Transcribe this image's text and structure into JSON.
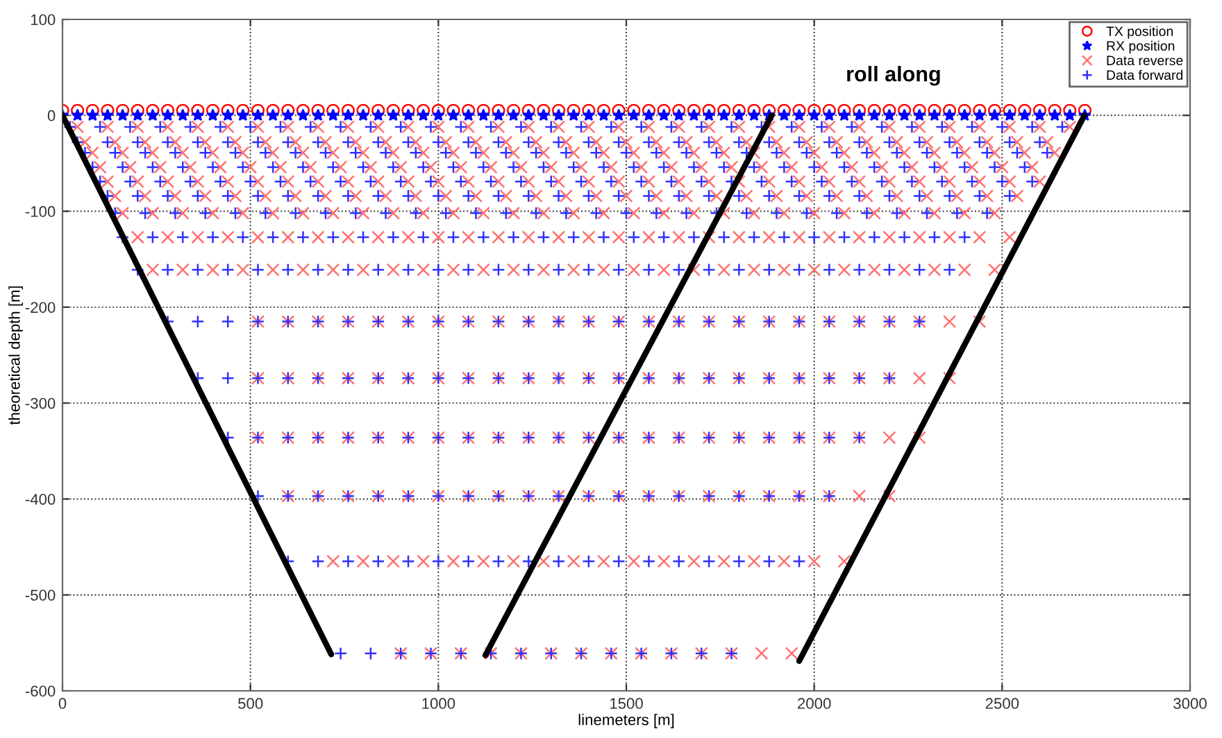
{
  "chart_data": {
    "type": "scatter",
    "xlabel": "linemeters [m]",
    "ylabel": "theoretical depth [m]",
    "annotations": [
      "roll along"
    ],
    "xlim": [
      0,
      3000
    ],
    "ylim": [
      -600,
      100
    ],
    "xticks": [
      0,
      500,
      1000,
      1500,
      2000,
      2500,
      3000
    ],
    "yticks": [
      -600,
      -500,
      -400,
      -300,
      -200,
      -100,
      0,
      100
    ],
    "grid": true,
    "legend": "top right",
    "series": [
      {
        "name": "TX position",
        "color": "#ff0000",
        "marker": "circle",
        "x": [
          0,
          40,
          80,
          120,
          160,
          200,
          240,
          280,
          320,
          360,
          400,
          440,
          480,
          520,
          560,
          600,
          640,
          680,
          720,
          760,
          800,
          840,
          880,
          920,
          960,
          1000,
          1040,
          1080,
          1120,
          1160,
          1200,
          1240,
          1280,
          1320,
          1360,
          1400,
          1440,
          1480,
          1520,
          1560,
          1600,
          1640,
          1680,
          1720,
          1760,
          1800,
          1840,
          1880,
          1920,
          1960,
          2000,
          2040,
          2080,
          2120,
          2160,
          2200,
          2240,
          2280,
          2320,
          2360,
          2400,
          2440,
          2480,
          2520,
          2560,
          2600,
          2640,
          2680,
          2720
        ],
        "values": [
          5,
          5,
          5,
          5,
          5,
          5,
          5,
          5,
          5,
          5,
          5,
          5,
          5,
          5,
          5,
          5,
          5,
          5,
          5,
          5,
          5,
          5,
          5,
          5,
          5,
          5,
          5,
          5,
          5,
          5,
          5,
          5,
          5,
          5,
          5,
          5,
          5,
          5,
          5,
          5,
          5,
          5,
          5,
          5,
          5,
          5,
          5,
          5,
          5,
          5,
          5,
          5,
          5,
          5,
          5,
          5,
          5,
          5,
          5,
          5,
          5,
          5,
          5,
          5,
          5,
          5,
          5,
          5,
          5
        ]
      },
      {
        "name": "RX position",
        "color": "#0000ff",
        "marker": "star",
        "x": [
          0,
          40,
          80,
          120,
          160,
          200,
          240,
          280,
          320,
          360,
          400,
          440,
          480,
          520,
          560,
          600,
          640,
          680,
          720,
          760,
          800,
          840,
          880,
          920,
          960,
          1000,
          1040,
          1080,
          1120,
          1160,
          1200,
          1240,
          1280,
          1320,
          1360,
          1400,
          1440,
          1480,
          1520,
          1560,
          1600,
          1640,
          1680,
          1720,
          1760,
          1800,
          1840,
          1880,
          1920,
          1960,
          2000,
          2040,
          2080,
          2120,
          2160,
          2200,
          2240,
          2280,
          2320,
          2360,
          2400,
          2440,
          2480,
          2520,
          2560,
          2600,
          2640,
          2680,
          2720
        ],
        "values": [
          0,
          0,
          0,
          0,
          0,
          0,
          0,
          0,
          0,
          0,
          0,
          0,
          0,
          0,
          0,
          0,
          0,
          0,
          0,
          0,
          0,
          0,
          0,
          0,
          0,
          0,
          0,
          0,
          0,
          0,
          0,
          0,
          0,
          0,
          0,
          0,
          0,
          0,
          0,
          0,
          0,
          0,
          0,
          0,
          0,
          0,
          0,
          0,
          0,
          0,
          0,
          0,
          0,
          0,
          0,
          0,
          0,
          0,
          0,
          0,
          0,
          0,
          0,
          0,
          0,
          0,
          0,
          0,
          0
        ]
      },
      {
        "name": "Data reverse",
        "color": "#ff7070",
        "marker": "cross",
        "x": [
          40,
          120,
          200,
          280,
          360,
          440,
          520,
          600,
          680,
          760,
          840,
          920,
          1000,
          1080,
          1160,
          1240,
          1320,
          1400,
          1480,
          1560,
          1640,
          1720,
          1800,
          1880,
          1960,
          2040,
          2120,
          2200,
          2280,
          2360,
          2440,
          2520,
          2600,
          2680,
          60,
          140,
          220,
          300,
          380,
          460,
          540,
          620,
          700,
          780,
          860,
          940,
          1020,
          1100,
          1180,
          1260,
          1340,
          1420,
          1500,
          1580,
          1660,
          1740,
          1820,
          1900,
          1980,
          2060,
          2140,
          2220,
          2300,
          2380,
          2460,
          2540,
          2620,
          80,
          160,
          240,
          320,
          400,
          480,
          560,
          640,
          720,
          800,
          880,
          960,
          1040,
          1120,
          1200,
          1280,
          1360,
          1440,
          1520,
          1600,
          1680,
          1760,
          1840,
          1920,
          2000,
          2080,
          2160,
          2240,
          2320,
          2400,
          2480,
          2560,
          2640,
          100,
          180,
          260,
          340,
          420,
          500,
          580,
          660,
          740,
          820,
          900,
          980,
          1060,
          1140,
          1220,
          1300,
          1380,
          1460,
          1540,
          1620,
          1700,
          1780,
          1860,
          1940,
          2020,
          2100,
          2180,
          2260,
          2340,
          2420,
          2500,
          2580,
          120,
          200,
          280,
          360,
          440,
          520,
          600,
          680,
          760,
          840,
          920,
          1000,
          1080,
          1160,
          1240,
          1320,
          1400,
          1480,
          1560,
          1640,
          1720,
          1800,
          1880,
          1960,
          2040,
          2120,
          2200,
          2280,
          2360,
          2440,
          2520,
          2600,
          140,
          220,
          300,
          380,
          460,
          540,
          620,
          700,
          780,
          860,
          940,
          1020,
          1100,
          1180,
          1260,
          1340,
          1420,
          1500,
          1580,
          1660,
          1740,
          1820,
          1900,
          1980,
          2060,
          2140,
          2220,
          2300,
          2380,
          2460,
          2540,
          160,
          240,
          320,
          400,
          480,
          560,
          640,
          720,
          800,
          880,
          960,
          1040,
          1120,
          1200,
          1280,
          1360,
          1440,
          1520,
          1600,
          1680,
          1760,
          1840,
          1920,
          2000,
          2080,
          2160,
          2240,
          2320,
          2400,
          2480,
          200,
          280,
          360,
          440,
          520,
          600,
          680,
          760,
          840,
          920,
          1000,
          1080,
          1160,
          1240,
          1320,
          1400,
          1480,
          1560,
          1640,
          1720,
          1800,
          1880,
          1960,
          2040,
          2120,
          2200,
          2280,
          2360,
          2440,
          2520,
          240,
          320,
          400,
          480,
          560,
          640,
          720,
          800,
          880,
          960,
          1040,
          1120,
          1200,
          1280,
          1360,
          1440,
          1520,
          1600,
          1680,
          1760,
          1840,
          1920,
          2000,
          2080,
          2160,
          2240,
          2320,
          2400,
          2480,
          520,
          600,
          680,
          760,
          840,
          920,
          1000,
          1080,
          1160,
          1240,
          1320,
          1400,
          1480,
          1560,
          1640,
          1720,
          1800,
          1880,
          1960,
          2040,
          2120,
          2200,
          2280,
          2360,
          2440,
          520,
          600,
          680,
          760,
          840,
          920,
          1000,
          1080,
          1160,
          1240,
          1320,
          1400,
          1480,
          1560,
          1640,
          1720,
          1800,
          1880,
          1960,
          2040,
          2120,
          2200,
          2280,
          2360,
          520,
          600,
          680,
          760,
          840,
          920,
          1000,
          1080,
          1160,
          1240,
          1320,
          1400,
          1480,
          1560,
          1640,
          1720,
          1800,
          1880,
          1960,
          2040,
          2120,
          2200,
          2280,
          600,
          680,
          760,
          840,
          920,
          1000,
          1080,
          1160,
          1240,
          1320,
          1400,
          1480,
          1560,
          1640,
          1720,
          1800,
          1880,
          1960,
          2040,
          2120,
          2200,
          720,
          800,
          880,
          960,
          1040,
          1120,
          1200,
          1280,
          1360,
          1440,
          1520,
          1600,
          1680,
          1760,
          1840,
          1920,
          2000,
          2080,
          900,
          980,
          1060,
          1140,
          1220,
          1300,
          1380,
          1460,
          1540,
          1620,
          1700,
          1780,
          1860,
          1940
        ],
        "values": [
          -12,
          -12,
          -12,
          -12,
          -12,
          -12,
          -12,
          -12,
          -12,
          -12,
          -12,
          -12,
          -12,
          -12,
          -12,
          -12,
          -12,
          -12,
          -12,
          -12,
          -12,
          -12,
          -12,
          -12,
          -12,
          -12,
          -12,
          -12,
          -12,
          -12,
          -12,
          -12,
          -12,
          -12,
          -28,
          -28,
          -28,
          -28,
          -28,
          -28,
          -28,
          -28,
          -28,
          -28,
          -28,
          -28,
          -28,
          -28,
          -28,
          -28,
          -28,
          -28,
          -28,
          -28,
          -28,
          -28,
          -28,
          -28,
          -28,
          -28,
          -28,
          -28,
          -28,
          -28,
          -28,
          -28,
          -28,
          -39,
          -39,
          -39,
          -39,
          -39,
          -39,
          -39,
          -39,
          -39,
          -39,
          -39,
          -39,
          -39,
          -39,
          -39,
          -39,
          -39,
          -39,
          -39,
          -39,
          -39,
          -39,
          -39,
          -39,
          -39,
          -39,
          -39,
          -39,
          -39,
          -39,
          -39,
          -39,
          -39,
          -54,
          -54,
          -54,
          -54,
          -54,
          -54,
          -54,
          -54,
          -54,
          -54,
          -54,
          -54,
          -54,
          -54,
          -54,
          -54,
          -54,
          -54,
          -54,
          -54,
          -54,
          -54,
          -54,
          -54,
          -54,
          -54,
          -54,
          -54,
          -54,
          -54,
          -54,
          -54,
          -69,
          -69,
          -69,
          -69,
          -69,
          -69,
          -69,
          -69,
          -69,
          -69,
          -69,
          -69,
          -69,
          -69,
          -69,
          -69,
          -69,
          -69,
          -69,
          -69,
          -69,
          -69,
          -69,
          -69,
          -69,
          -69,
          -69,
          -69,
          -69,
          -69,
          -69,
          -69,
          -84,
          -84,
          -84,
          -84,
          -84,
          -84,
          -84,
          -84,
          -84,
          -84,
          -84,
          -84,
          -84,
          -84,
          -84,
          -84,
          -84,
          -84,
          -84,
          -84,
          -84,
          -84,
          -84,
          -84,
          -84,
          -84,
          -84,
          -84,
          -84,
          -84,
          -84,
          -102,
          -102,
          -102,
          -102,
          -102,
          -102,
          -102,
          -102,
          -102,
          -102,
          -102,
          -102,
          -102,
          -102,
          -102,
          -102,
          -102,
          -102,
          -102,
          -102,
          -102,
          -102,
          -102,
          -102,
          -102,
          -102,
          -102,
          -102,
          -102,
          -102,
          -127,
          -127,
          -127,
          -127,
          -127,
          -127,
          -127,
          -127,
          -127,
          -127,
          -127,
          -127,
          -127,
          -127,
          -127,
          -127,
          -127,
          -127,
          -127,
          -127,
          -127,
          -127,
          -127,
          -127,
          -127,
          -127,
          -127,
          -127,
          -127,
          -127,
          -161,
          -161,
          -161,
          -161,
          -161,
          -161,
          -161,
          -161,
          -161,
          -161,
          -161,
          -161,
          -161,
          -161,
          -161,
          -161,
          -161,
          -161,
          -161,
          -161,
          -161,
          -161,
          -161,
          -161,
          -161,
          -161,
          -161,
          -161,
          -161,
          -215,
          -215,
          -215,
          -215,
          -215,
          -215,
          -215,
          -215,
          -215,
          -215,
          -215,
          -215,
          -215,
          -215,
          -215,
          -215,
          -215,
          -215,
          -215,
          -215,
          -215,
          -215,
          -215,
          -215,
          -215,
          -274,
          -274,
          -274,
          -274,
          -274,
          -274,
          -274,
          -274,
          -274,
          -274,
          -274,
          -274,
          -274,
          -274,
          -274,
          -274,
          -274,
          -274,
          -274,
          -274,
          -274,
          -274,
          -274,
          -274,
          -336,
          -336,
          -336,
          -336,
          -336,
          -336,
          -336,
          -336,
          -336,
          -336,
          -336,
          -336,
          -336,
          -336,
          -336,
          -336,
          -336,
          -336,
          -336,
          -336,
          -336,
          -336,
          -336,
          -397,
          -397,
          -397,
          -397,
          -397,
          -397,
          -397,
          -397,
          -397,
          -397,
          -397,
          -397,
          -397,
          -397,
          -397,
          -397,
          -397,
          -397,
          -397,
          -397,
          -397,
          -465,
          -465,
          -465,
          -465,
          -465,
          -465,
          -465,
          -465,
          -465,
          -465,
          -465,
          -465,
          -465,
          -465,
          -465,
          -465,
          -465,
          -465,
          -561,
          -561,
          -561,
          -561,
          -561,
          -561,
          -561,
          -561,
          -561,
          -561,
          -561,
          -561,
          -561,
          -561
        ]
      },
      {
        "name": "Data forward",
        "color": "#3030ff",
        "marker": "plus",
        "x": [
          20,
          100,
          180,
          260,
          340,
          420,
          500,
          580,
          660,
          740,
          820,
          900,
          980,
          1060,
          1140,
          1220,
          1300,
          1380,
          1460,
          1540,
          1620,
          1700,
          1780,
          1860,
          1940,
          2020,
          2100,
          2180,
          2260,
          2340,
          2420,
          2500,
          2580,
          2660,
          40,
          120,
          200,
          280,
          360,
          440,
          520,
          600,
          680,
          760,
          840,
          920,
          1000,
          1080,
          1160,
          1240,
          1320,
          1400,
          1480,
          1560,
          1640,
          1720,
          1800,
          1880,
          1960,
          2040,
          2120,
          2200,
          2280,
          2360,
          2440,
          2520,
          2600,
          60,
          140,
          220,
          300,
          380,
          460,
          540,
          620,
          700,
          780,
          860,
          940,
          1020,
          1100,
          1180,
          1260,
          1340,
          1420,
          1500,
          1580,
          1660,
          1740,
          1820,
          1900,
          1980,
          2060,
          2140,
          2220,
          2300,
          2380,
          2460,
          2540,
          2620,
          80,
          160,
          240,
          320,
          400,
          480,
          560,
          640,
          720,
          800,
          880,
          960,
          1040,
          1120,
          1200,
          1280,
          1360,
          1440,
          1520,
          1600,
          1680,
          1760,
          1840,
          1920,
          2000,
          2080,
          2160,
          2240,
          2320,
          2400,
          2480,
          2560,
          100,
          180,
          260,
          340,
          420,
          500,
          580,
          660,
          740,
          820,
          900,
          980,
          1060,
          1140,
          1220,
          1300,
          1380,
          1460,
          1540,
          1620,
          1700,
          1780,
          1860,
          1940,
          2020,
          2100,
          2180,
          2260,
          2340,
          2420,
          2500,
          2580,
          120,
          200,
          280,
          360,
          440,
          520,
          600,
          680,
          760,
          840,
          920,
          1000,
          1080,
          1160,
          1240,
          1320,
          1400,
          1480,
          1560,
          1640,
          1720,
          1800,
          1880,
          1960,
          2040,
          2120,
          2200,
          2280,
          2360,
          2440,
          2520,
          140,
          220,
          300,
          380,
          460,
          540,
          620,
          700,
          780,
          860,
          940,
          1020,
          1100,
          1180,
          1260,
          1340,
          1420,
          1500,
          1580,
          1660,
          1740,
          1820,
          1900,
          1980,
          2060,
          2140,
          2220,
          2300,
          2380,
          2460,
          160,
          240,
          320,
          400,
          480,
          560,
          640,
          720,
          800,
          880,
          960,
          1040,
          1120,
          1200,
          1280,
          1360,
          1440,
          1520,
          1600,
          1680,
          1760,
          1840,
          1920,
          2000,
          2080,
          2160,
          2240,
          2320,
          2400,
          200,
          280,
          360,
          440,
          520,
          600,
          680,
          760,
          840,
          920,
          1000,
          1080,
          1160,
          1240,
          1320,
          1400,
          1480,
          1560,
          1640,
          1720,
          1800,
          1880,
          1960,
          2040,
          2120,
          2200,
          2280,
          2360,
          280,
          360,
          440,
          520,
          600,
          680,
          760,
          840,
          920,
          1000,
          1080,
          1160,
          1240,
          1320,
          1400,
          1480,
          1560,
          1640,
          1720,
          1800,
          1880,
          1960,
          2040,
          2120,
          2200,
          2280,
          360,
          440,
          520,
          600,
          680,
          760,
          840,
          920,
          1000,
          1080,
          1160,
          1240,
          1320,
          1400,
          1480,
          1560,
          1640,
          1720,
          1800,
          1880,
          1960,
          2040,
          2120,
          2200,
          440,
          520,
          600,
          680,
          760,
          840,
          920,
          1000,
          1080,
          1160,
          1240,
          1320,
          1400,
          1480,
          1560,
          1640,
          1720,
          1800,
          1880,
          1960,
          2040,
          2120,
          520,
          600,
          680,
          760,
          840,
          920,
          1000,
          1080,
          1160,
          1240,
          1320,
          1400,
          1480,
          1560,
          1640,
          1720,
          1800,
          1880,
          1960,
          2040,
          600,
          680,
          760,
          840,
          920,
          1000,
          1080,
          1160,
          1240,
          1320,
          1400,
          1480,
          1560,
          1640,
          1720,
          1800,
          1880,
          1960,
          740,
          820,
          900,
          980,
          1060,
          1140,
          1220,
          1300,
          1380,
          1460,
          1540,
          1620,
          1700,
          1780
        ],
        "values": [
          -12,
          -12,
          -12,
          -12,
          -12,
          -12,
          -12,
          -12,
          -12,
          -12,
          -12,
          -12,
          -12,
          -12,
          -12,
          -12,
          -12,
          -12,
          -12,
          -12,
          -12,
          -12,
          -12,
          -12,
          -12,
          -12,
          -12,
          -12,
          -12,
          -12,
          -12,
          -12,
          -12,
          -12,
          -28,
          -28,
          -28,
          -28,
          -28,
          -28,
          -28,
          -28,
          -28,
          -28,
          -28,
          -28,
          -28,
          -28,
          -28,
          -28,
          -28,
          -28,
          -28,
          -28,
          -28,
          -28,
          -28,
          -28,
          -28,
          -28,
          -28,
          -28,
          -28,
          -28,
          -28,
          -28,
          -28,
          -39,
          -39,
          -39,
          -39,
          -39,
          -39,
          -39,
          -39,
          -39,
          -39,
          -39,
          -39,
          -39,
          -39,
          -39,
          -39,
          -39,
          -39,
          -39,
          -39,
          -39,
          -39,
          -39,
          -39,
          -39,
          -39,
          -39,
          -39,
          -39,
          -39,
          -39,
          -39,
          -39,
          -54,
          -54,
          -54,
          -54,
          -54,
          -54,
          -54,
          -54,
          -54,
          -54,
          -54,
          -54,
          -54,
          -54,
          -54,
          -54,
          -54,
          -54,
          -54,
          -54,
          -54,
          -54,
          -54,
          -54,
          -54,
          -54,
          -54,
          -54,
          -54,
          -54,
          -54,
          -54,
          -69,
          -69,
          -69,
          -69,
          -69,
          -69,
          -69,
          -69,
          -69,
          -69,
          -69,
          -69,
          -69,
          -69,
          -69,
          -69,
          -69,
          -69,
          -69,
          -69,
          -69,
          -69,
          -69,
          -69,
          -69,
          -69,
          -69,
          -69,
          -69,
          -69,
          -69,
          -69,
          -84,
          -84,
          -84,
          -84,
          -84,
          -84,
          -84,
          -84,
          -84,
          -84,
          -84,
          -84,
          -84,
          -84,
          -84,
          -84,
          -84,
          -84,
          -84,
          -84,
          -84,
          -84,
          -84,
          -84,
          -84,
          -84,
          -84,
          -84,
          -84,
          -84,
          -84,
          -102,
          -102,
          -102,
          -102,
          -102,
          -102,
          -102,
          -102,
          -102,
          -102,
          -102,
          -102,
          -102,
          -102,
          -102,
          -102,
          -102,
          -102,
          -102,
          -102,
          -102,
          -102,
          -102,
          -102,
          -102,
          -102,
          -102,
          -102,
          -102,
          -102,
          -127,
          -127,
          -127,
          -127,
          -127,
          -127,
          -127,
          -127,
          -127,
          -127,
          -127,
          -127,
          -127,
          -127,
          -127,
          -127,
          -127,
          -127,
          -127,
          -127,
          -127,
          -127,
          -127,
          -127,
          -127,
          -127,
          -127,
          -127,
          -127,
          -161,
          -161,
          -161,
          -161,
          -161,
          -161,
          -161,
          -161,
          -161,
          -161,
          -161,
          -161,
          -161,
          -161,
          -161,
          -161,
          -161,
          -161,
          -161,
          -161,
          -161,
          -161,
          -161,
          -161,
          -161,
          -161,
          -161,
          -161,
          -215,
          -215,
          -215,
          -215,
          -215,
          -215,
          -215,
          -215,
          -215,
          -215,
          -215,
          -215,
          -215,
          -215,
          -215,
          -215,
          -215,
          -215,
          -215,
          -215,
          -215,
          -215,
          -215,
          -215,
          -215,
          -215,
          -274,
          -274,
          -274,
          -274,
          -274,
          -274,
          -274,
          -274,
          -274,
          -274,
          -274,
          -274,
          -274,
          -274,
          -274,
          -274,
          -274,
          -274,
          -274,
          -274,
          -274,
          -274,
          -274,
          -274,
          -336,
          -336,
          -336,
          -336,
          -336,
          -336,
          -336,
          -336,
          -336,
          -336,
          -336,
          -336,
          -336,
          -336,
          -336,
          -336,
          -336,
          -336,
          -336,
          -336,
          -336,
          -336,
          -397,
          -397,
          -397,
          -397,
          -397,
          -397,
          -397,
          -397,
          -397,
          -397,
          -397,
          -397,
          -397,
          -397,
          -397,
          -397,
          -397,
          -397,
          -397,
          -397,
          -465,
          -465,
          -465,
          -465,
          -465,
          -465,
          -465,
          -465,
          -465,
          -465,
          -465,
          -465,
          -465,
          -465,
          -465,
          -465,
          -465,
          -465,
          -561,
          -561,
          -561,
          -561,
          -561,
          -561,
          -561,
          -561,
          -561,
          -561,
          -561,
          -561,
          -561,
          -561
        ]
      },
      {
        "type": "line",
        "color": "#000000",
        "x": [
          0,
          715
        ],
        "values": [
          0,
          -562
        ]
      },
      {
        "type": "line",
        "color": "#000000",
        "x": [
          1887,
          1125
        ],
        "values": [
          0,
          -563
        ]
      },
      {
        "type": "line",
        "color": "#000000",
        "x": [
          2719,
          1960
        ],
        "values": [
          0,
          -569
        ]
      }
    ]
  }
}
